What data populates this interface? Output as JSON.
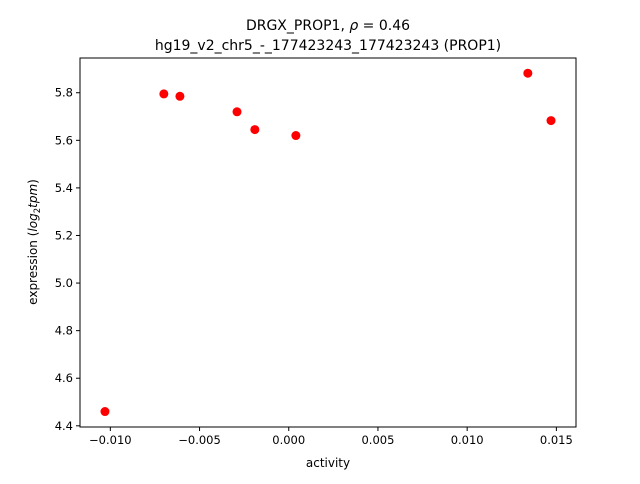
{
  "chart_data": {
    "type": "scatter",
    "title_line1_prefix": "DRGX_PROP1, ",
    "title_line1_rho": "ρ",
    "title_line1_suffix": " = 0.46",
    "title_line2": "hg19_v2_chr5_-_177423243_177423243 (PROP1)",
    "xlabel": "activity",
    "ylabel_prefix": "expression (",
    "ylabel_log": "log",
    "ylabel_sub": "2",
    "ylabel_tpm": "tpm",
    "ylabel_suffix": ")",
    "xlim": [
      -0.0117,
      0.0161
    ],
    "ylim": [
      4.395,
      5.946
    ],
    "x_ticks": [
      {
        "value": -0.01,
        "label": "−0.010"
      },
      {
        "value": -0.005,
        "label": "−0.005"
      },
      {
        "value": 0.0,
        "label": "0.000"
      },
      {
        "value": 0.005,
        "label": "0.005"
      },
      {
        "value": 0.01,
        "label": "0.010"
      },
      {
        "value": 0.015,
        "label": "0.015"
      }
    ],
    "y_ticks": [
      {
        "value": 4.4,
        "label": "4.4"
      },
      {
        "value": 4.6,
        "label": "4.6"
      },
      {
        "value": 4.8,
        "label": "4.8"
      },
      {
        "value": 5.0,
        "label": "5.0"
      },
      {
        "value": 5.2,
        "label": "5.2"
      },
      {
        "value": 5.4,
        "label": "5.4"
      },
      {
        "value": 5.6,
        "label": "5.6"
      },
      {
        "value": 5.8,
        "label": "5.8"
      }
    ],
    "points": [
      {
        "x": -0.0103,
        "y": 4.46
      },
      {
        "x": -0.007,
        "y": 5.795
      },
      {
        "x": -0.0061,
        "y": 5.785
      },
      {
        "x": -0.0029,
        "y": 5.72
      },
      {
        "x": -0.0019,
        "y": 5.645
      },
      {
        "x": 0.0004,
        "y": 5.62
      },
      {
        "x": 0.0134,
        "y": 5.882
      },
      {
        "x": 0.0147,
        "y": 5.683
      }
    ],
    "point_color": "#ff0000",
    "grid": false,
    "legend": false
  }
}
